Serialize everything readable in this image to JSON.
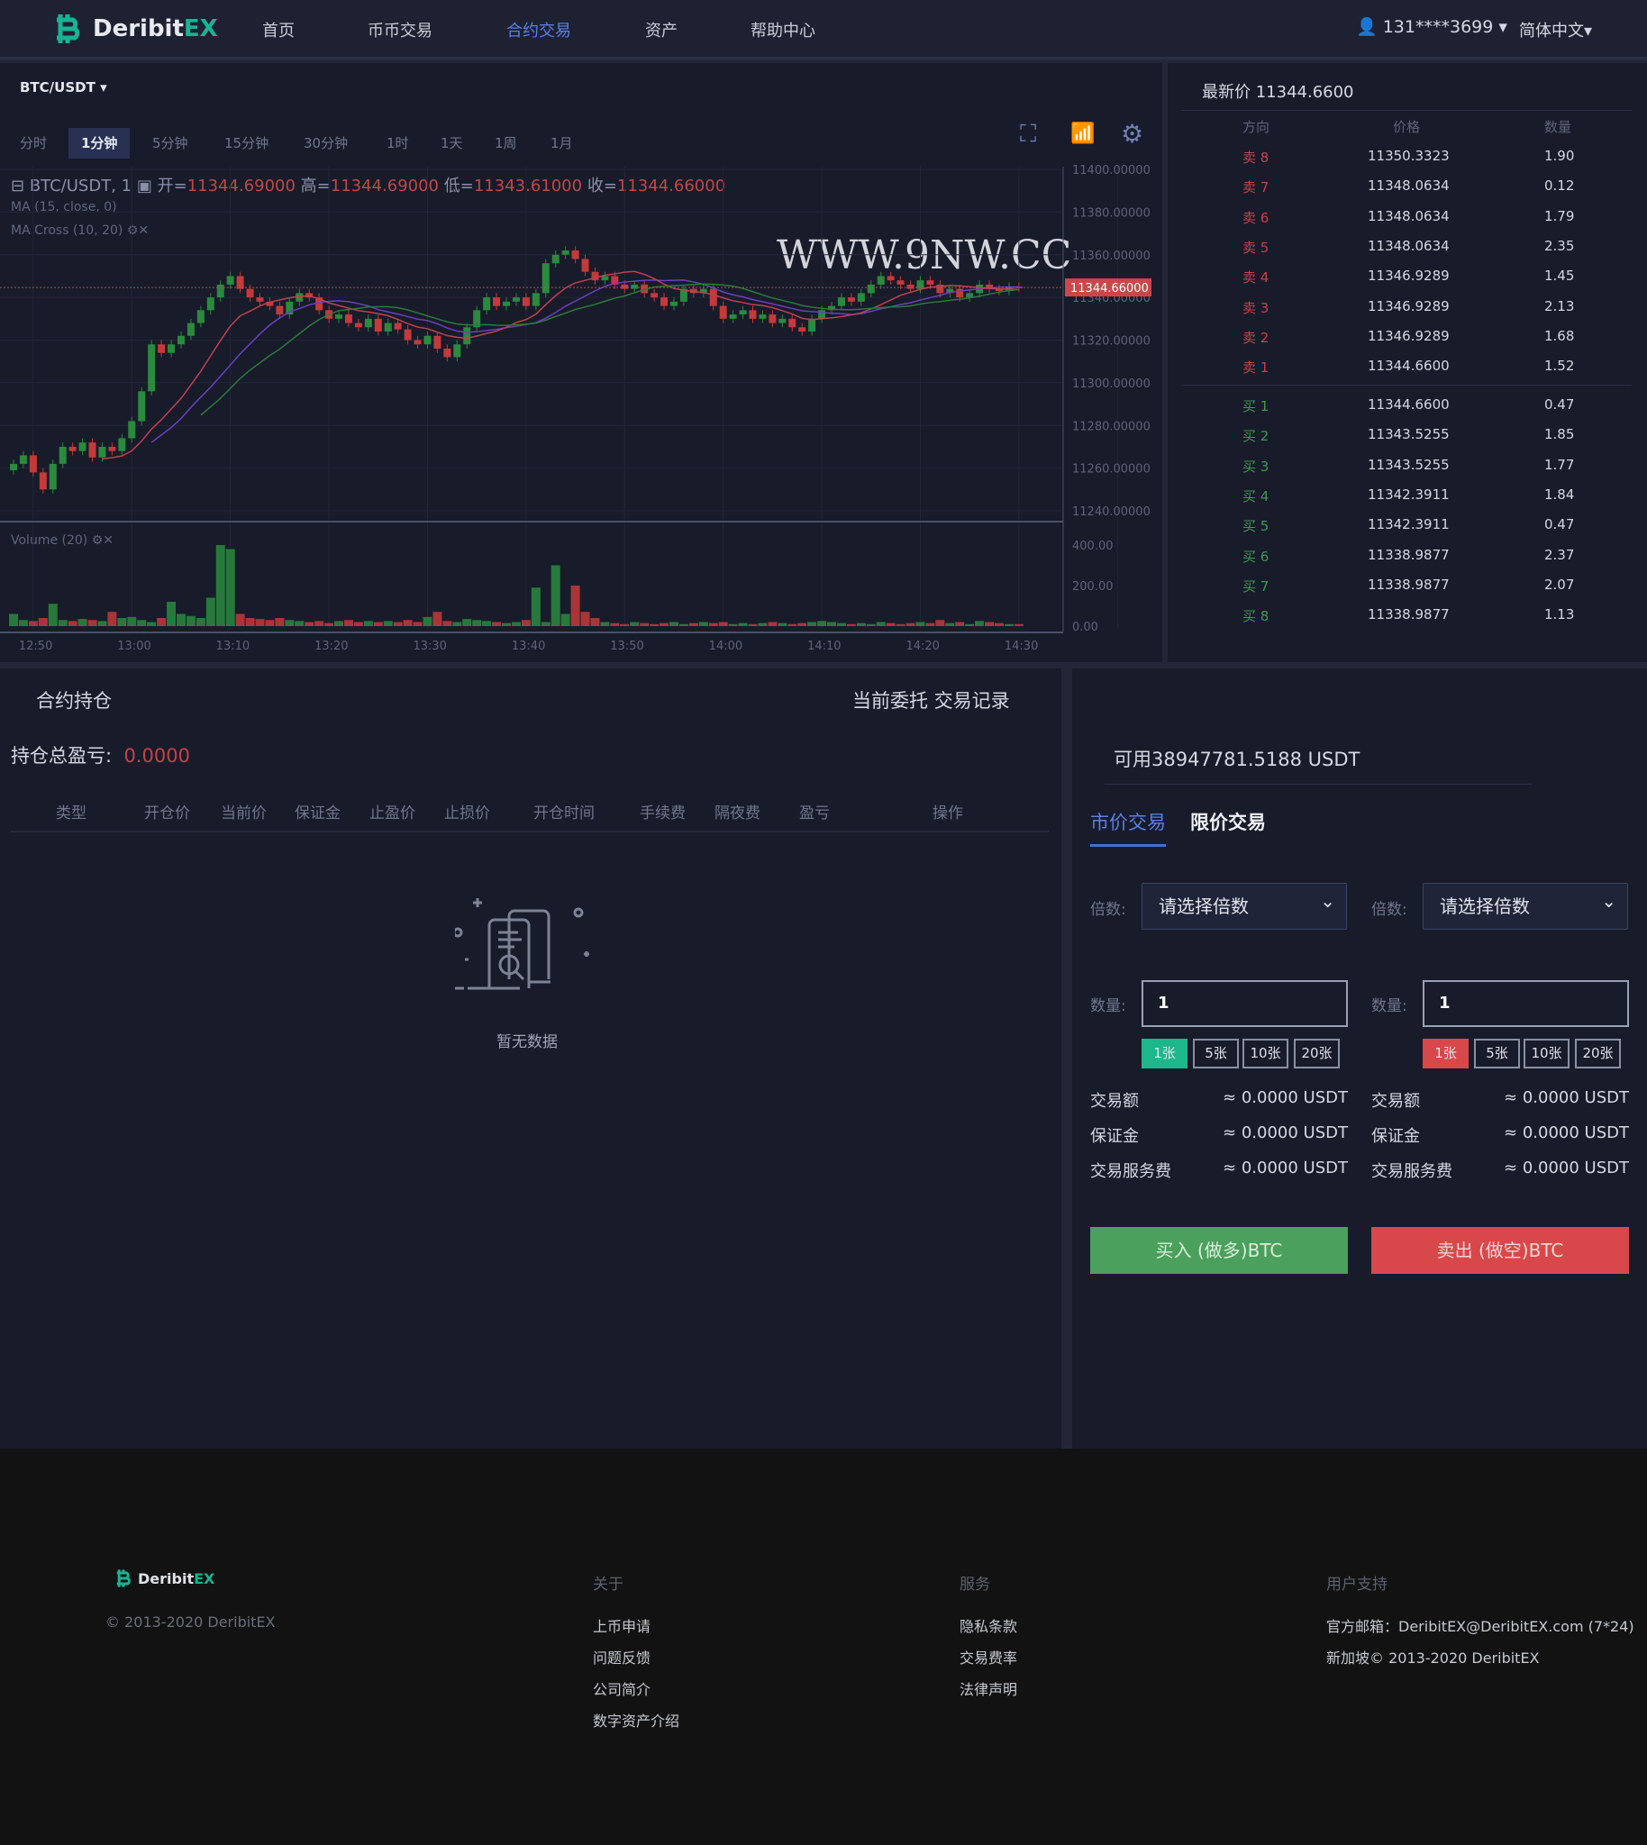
{
  "header": {
    "brand": "Deribit",
    "brand_accent": "EX",
    "nav": [
      "首页",
      "币币交易",
      "合约交易",
      "资产",
      "帮助中心"
    ],
    "active_nav": 2,
    "user": "131****3699",
    "language": "简体中文"
  },
  "chart": {
    "pair": "BTC/USDT",
    "timeframes": [
      "分时",
      "1分钟",
      "5分钟",
      "15分钟",
      "30分钟",
      "1时",
      "1天",
      "1周",
      "1月"
    ],
    "active_timeframe": 1,
    "legend": {
      "symbol": "BTC/USDT, 1",
      "open_label": "开=",
      "open": "11344.69000",
      "high_label": "高=",
      "high": "11344.69000",
      "low_label": "低=",
      "low": "11343.61000",
      "close_label": "收=",
      "close": "11344.66000"
    },
    "study1": "MA (15, close, 0)",
    "study2": "MA Cross (10, 20)",
    "volume_label": "Volume (20)",
    "watermark": "WWW.9NW.CC",
    "last_price_tag": "11344.66000",
    "colors": {
      "up": "#2a8a3e",
      "down": "#c43a3a",
      "ma15": "#6a3fbf",
      "ma10": "#c04050",
      "ma20": "#2b7a3a"
    }
  },
  "chart_data": {
    "type": "candlestick",
    "interval": "1 minute",
    "start_time": "12:48",
    "price_ticks": [
      "11400.00000",
      "11380.00000",
      "11360.00000",
      "11340.00000",
      "11320.00000",
      "11300.00000",
      "11280.00000",
      "11260.00000",
      "11240.00000"
    ],
    "price_ylim": [
      11240,
      11400
    ],
    "volume_ticks": [
      "400.00",
      "200.00",
      "0.00"
    ],
    "volume_ylim": [
      0,
      400
    ],
    "time_ticks": [
      "12:50",
      "13:00",
      "13:10",
      "13:20",
      "13:30",
      "13:40",
      "13:50",
      "14:00",
      "14:10",
      "14:20",
      "14:30"
    ],
    "close": [
      11262,
      11266,
      11258,
      11250,
      11262,
      11270,
      11268,
      11272,
      11265,
      11270,
      11268,
      11274,
      11282,
      11296,
      11318,
      11314,
      11318,
      11322,
      11328,
      11334,
      11340,
      11346,
      11350,
      11344,
      11340,
      11338,
      11336,
      11332,
      11338,
      11342,
      11340,
      11334,
      11330,
      11332,
      11328,
      11326,
      11330,
      11324,
      11328,
      11325,
      11320,
      11318,
      11322,
      11316,
      11312,
      11318,
      11326,
      11334,
      11340,
      11336,
      11338,
      11340,
      11336,
      11342,
      11356,
      11360,
      11362,
      11358,
      11352,
      11348,
      11350,
      11346,
      11344,
      11346,
      11342,
      11340,
      11336,
      11338,
      11344,
      11342,
      11344,
      11336,
      11330,
      11332,
      11334,
      11330,
      11332,
      11328,
      11330,
      11326,
      11324,
      11330,
      11334,
      11336,
      11340,
      11338,
      11342,
      11346,
      11350,
      11348,
      11346,
      11344,
      11348,
      11346,
      11342,
      11344,
      11340,
      11342,
      11346,
      11344,
      11343,
      11345,
      11344.66
    ],
    "volume": [
      60,
      30,
      25,
      40,
      110,
      30,
      25,
      35,
      30,
      25,
      70,
      40,
      45,
      30,
      20,
      40,
      120,
      60,
      50,
      40,
      140,
      400,
      380,
      60,
      40,
      35,
      30,
      40,
      30,
      25,
      20,
      25,
      15,
      25,
      30,
      20,
      25,
      20,
      25,
      20,
      30,
      20,
      45,
      70,
      25,
      20,
      35,
      30,
      25,
      20,
      15,
      20,
      30,
      190,
      20,
      300,
      60,
      200,
      70,
      40,
      20,
      15,
      10,
      20,
      15,
      10,
      15,
      20,
      10,
      15,
      20,
      15,
      20,
      10,
      15,
      10,
      15,
      20,
      15,
      10,
      15,
      20,
      25,
      20,
      15,
      10,
      15,
      10,
      20,
      15,
      10,
      15,
      20,
      15,
      30,
      15,
      20,
      10,
      25,
      20,
      15,
      10,
      10
    ]
  },
  "orderbook": {
    "title": "最新价 11344.6600",
    "headers": [
      "方向",
      "价格",
      "数量"
    ],
    "asks": [
      {
        "side": "卖 8",
        "price": "11350.3323",
        "qty": "1.90"
      },
      {
        "side": "卖 7",
        "price": "11348.0634",
        "qty": "0.12"
      },
      {
        "side": "卖 6",
        "price": "11348.0634",
        "qty": "1.79"
      },
      {
        "side": "卖 5",
        "price": "11348.0634",
        "qty": "2.35"
      },
      {
        "side": "卖 4",
        "price": "11346.9289",
        "qty": "1.45"
      },
      {
        "side": "卖 3",
        "price": "11346.9289",
        "qty": "2.13"
      },
      {
        "side": "卖 2",
        "price": "11346.9289",
        "qty": "1.68"
      },
      {
        "side": "卖 1",
        "price": "11344.6600",
        "qty": "1.52"
      }
    ],
    "bids": [
      {
        "side": "买 1",
        "price": "11344.6600",
        "qty": "0.47"
      },
      {
        "side": "买 2",
        "price": "11343.5255",
        "qty": "1.85"
      },
      {
        "side": "买 3",
        "price": "11343.5255",
        "qty": "1.77"
      },
      {
        "side": "买 4",
        "price": "11342.3911",
        "qty": "1.84"
      },
      {
        "side": "买 5",
        "price": "11342.3911",
        "qty": "0.47"
      },
      {
        "side": "买 6",
        "price": "11338.9877",
        "qty": "2.37"
      },
      {
        "side": "买 7",
        "price": "11338.9877",
        "qty": "2.07"
      },
      {
        "side": "买 8",
        "price": "11338.9877",
        "qty": "1.13"
      }
    ]
  },
  "positions": {
    "title": "合约持仓",
    "tab_orders": "当前委托",
    "tab_history": "交易记录",
    "pnl_label": "持仓总盈亏:",
    "pnl_value": "0.0000",
    "columns": [
      "类型",
      "开仓价",
      "当前价",
      "保证金",
      "止盈价",
      "止损价",
      "开仓时间",
      "手续费",
      "隔夜费",
      "盈亏",
      "操作"
    ],
    "empty": "暂无数据"
  },
  "trade": {
    "available": "可用38947781.5188 USDT",
    "tabs": [
      "市价交易",
      "限价交易"
    ],
    "active_tab": 0,
    "leverage_label": "倍数:",
    "leverage_placeholder": "请选择倍数",
    "qty_label": "数量:",
    "qty_value": "1",
    "chips": [
      "1张",
      "5张",
      "10张",
      "20张"
    ],
    "rows": [
      {
        "label": "交易额",
        "value": "≈ 0.0000 USDT"
      },
      {
        "label": "保证金",
        "value": "≈ 0.0000 USDT"
      },
      {
        "label": "交易服务费",
        "value": "≈ 0.0000 USDT"
      }
    ],
    "buy_label": "买入 (做多)BTC",
    "sell_label": "卖出 (做空)BTC",
    "buy_color": "#4aa05c",
    "sell_color": "#d8484a"
  },
  "footer": {
    "copyright": "© 2013-2020 DeribitEX",
    "about": {
      "title": "关于",
      "links": [
        "上币申请",
        "问题反馈",
        "公司简介",
        "数字资产介绍"
      ]
    },
    "service": {
      "title": "服务",
      "links": [
        "隐私条款",
        "交易费率",
        "法律声明"
      ]
    },
    "support": {
      "title": "用户支持",
      "email": "官方邮箱：DeribitEX@DeribitEX.com  (7*24)",
      "line2": "新加坡© 2013-2020 DeribitEX"
    }
  }
}
